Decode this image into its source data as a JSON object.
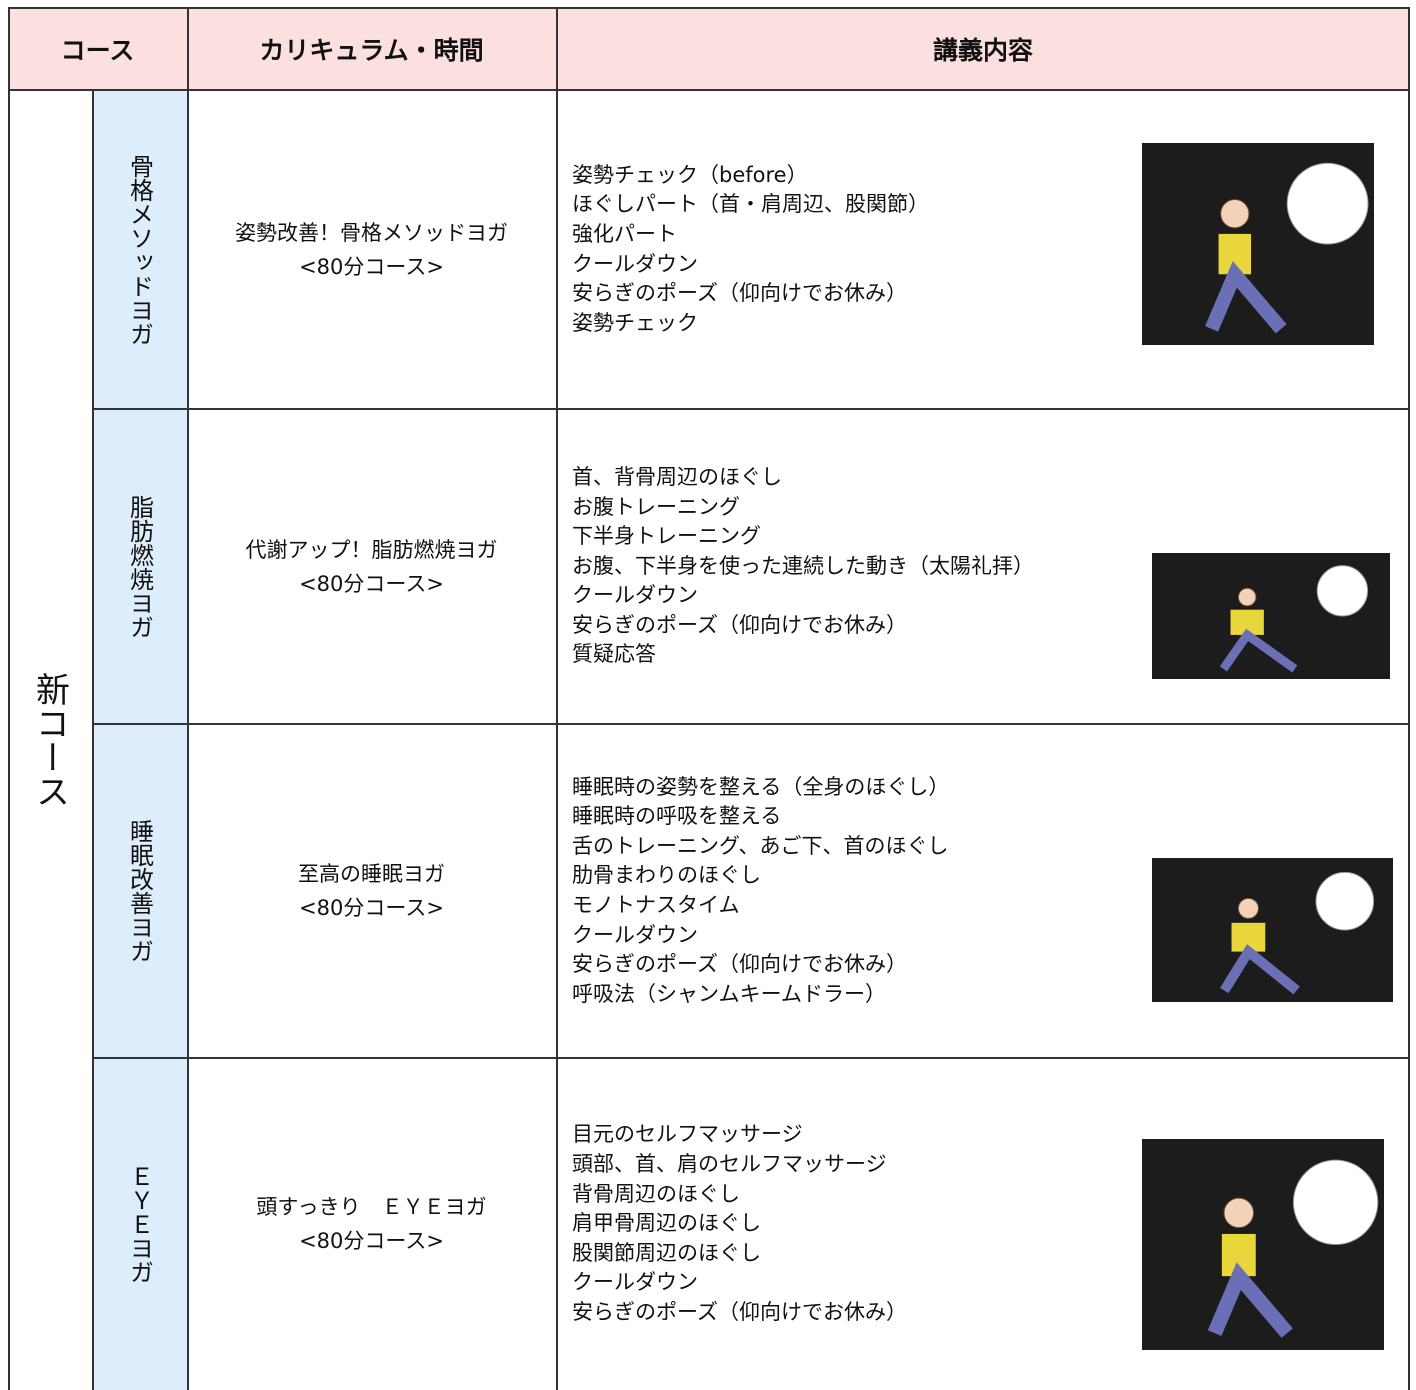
{
  "header": {
    "course": "コース",
    "curriculum": "カリキュラム・時間",
    "content": "講義内容"
  },
  "group": "新コース",
  "rows": [
    {
      "name": "骨格メソッドヨガ",
      "title": "姿勢改善！骨格メソッドヨガ",
      "duration": "<80分コース>",
      "items": [
        "姿勢チェック（before）",
        "ほぐしパート（首・肩周辺、股関節）",
        "強化パート",
        "クールダウン",
        "安らぎのポーズ（仰向けでお休み）",
        "姿勢チェック"
      ]
    },
    {
      "name": "脂肪燃焼ヨガ",
      "title": "代謝アップ！脂肪燃焼ヨガ",
      "duration": "<80分コース>",
      "items": [
        "首、背骨周辺のほぐし",
        "お腹トレーニング",
        "下半身トレーニング",
        "お腹、下半身を使った連続した動き（太陽礼拝）",
        "クールダウン",
        "安らぎのポーズ（仰向けでお休み）",
        "質疑応答"
      ]
    },
    {
      "name": "睡眠改善ヨガ",
      "title": "至高の睡眠ヨガ",
      "duration": "<80分コース>",
      "items": [
        "睡眠時の姿勢を整える（全身のほぐし）",
        "睡眠時の呼吸を整える",
        "舌のトレーニング、あご下、首のほぐし",
        "肋骨まわりのほぐし",
        "モノトナスタイム",
        "クールダウン",
        "安らぎのポーズ（仰向けでお休み）",
        "呼吸法（シャンムキームドラー）"
      ]
    },
    {
      "name": "ＥＹＥヨガ",
      "title": "頭すっきり　ＥＹＥヨガ",
      "duration": "<80分コース>",
      "items": [
        "目元のセルフマッサージ",
        "頭部、首、肩のセルフマッサージ",
        "背骨周辺のほぐし",
        "肩甲骨周辺のほぐし",
        "股関節周辺のほぐし",
        "クールダウン",
        "安らぎのポーズ（仰向けでお休み）"
      ]
    }
  ]
}
